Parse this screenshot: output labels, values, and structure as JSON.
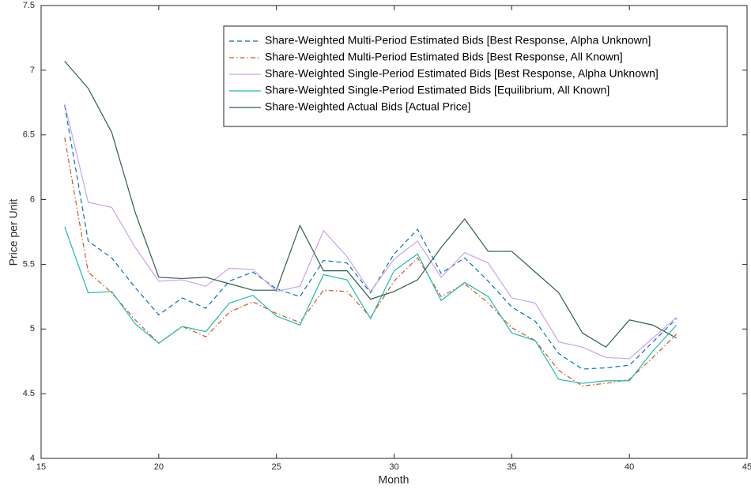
{
  "chart_data": {
    "type": "line",
    "xlabel": "Month",
    "ylabel": "Price per Unit",
    "x": [
      16,
      17,
      18,
      19,
      20,
      21,
      22,
      23,
      24,
      25,
      26,
      27,
      28,
      29,
      30,
      31,
      32,
      33,
      34,
      35,
      36,
      37,
      38,
      39,
      40,
      41,
      42
    ],
    "xlim": [
      15,
      45
    ],
    "xticks": [
      15,
      20,
      25,
      30,
      35,
      40,
      45
    ],
    "ylim": [
      4,
      7.5
    ],
    "yticks": [
      4,
      4.5,
      5,
      5.5,
      6,
      6.5,
      7,
      7.5
    ],
    "grid": false,
    "legend": "upper right",
    "series": [
      {
        "name": "Share-Weighted Multi-Period Estimated Bids [Best Response, Alpha Unknown]",
        "color": "#0072bd",
        "style": "dashed",
        "values": [
          6.73,
          5.68,
          5.55,
          5.32,
          5.11,
          5.24,
          5.16,
          5.37,
          5.44,
          5.31,
          5.25,
          5.53,
          5.51,
          5.28,
          5.58,
          5.77,
          5.43,
          5.55,
          5.37,
          5.17,
          5.06,
          4.81,
          4.69,
          4.7,
          4.72,
          4.9,
          5.08
        ]
      },
      {
        "name": "Share-Weighted Multi-Period Estimated Bids [Best Response, All Known]",
        "color": "#d95319",
        "style": "dashdot",
        "values": [
          6.48,
          5.44,
          5.28,
          5.07,
          4.89,
          5.02,
          4.94,
          5.13,
          5.21,
          5.12,
          5.05,
          5.3,
          5.29,
          5.09,
          5.37,
          5.55,
          5.25,
          5.35,
          5.2,
          5.01,
          4.91,
          4.68,
          4.56,
          4.58,
          4.61,
          4.78,
          4.96
        ]
      },
      {
        "name": "Share-Weighted Single-Period Estimated Bids [Best Response, Alpha Unknown]",
        "color": "#c9a3f0",
        "style": "solid",
        "values": [
          6.74,
          5.98,
          5.94,
          5.63,
          5.37,
          5.38,
          5.33,
          5.47,
          5.46,
          5.29,
          5.33,
          5.76,
          5.56,
          5.29,
          5.54,
          5.68,
          5.4,
          5.59,
          5.51,
          5.24,
          5.2,
          4.9,
          4.86,
          4.78,
          4.77,
          4.93,
          5.09
        ]
      },
      {
        "name": "Share-Weighted Single-Period Estimated Bids [Equilibrium, All Known]",
        "color": "#1cbcb0",
        "style": "solid",
        "values": [
          5.79,
          5.28,
          5.29,
          5.04,
          4.89,
          5.02,
          4.98,
          5.2,
          5.26,
          5.1,
          5.03,
          5.42,
          5.38,
          5.08,
          5.45,
          5.58,
          5.22,
          5.36,
          5.25,
          4.97,
          4.91,
          4.61,
          4.58,
          4.6,
          4.6,
          4.83,
          5.03
        ]
      },
      {
        "name": "Share-Weighted Actual Bids [Actual Price]",
        "color": "#2e5e48",
        "style": "solid",
        "values": [
          7.07,
          6.86,
          6.52,
          5.9,
          5.4,
          5.39,
          5.4,
          5.35,
          5.3,
          5.3,
          5.8,
          5.45,
          5.45,
          5.23,
          5.29,
          5.38,
          5.63,
          5.85,
          5.6,
          5.6,
          5.44,
          5.28,
          4.97,
          4.86,
          5.07,
          5.03,
          4.93
        ]
      }
    ]
  }
}
